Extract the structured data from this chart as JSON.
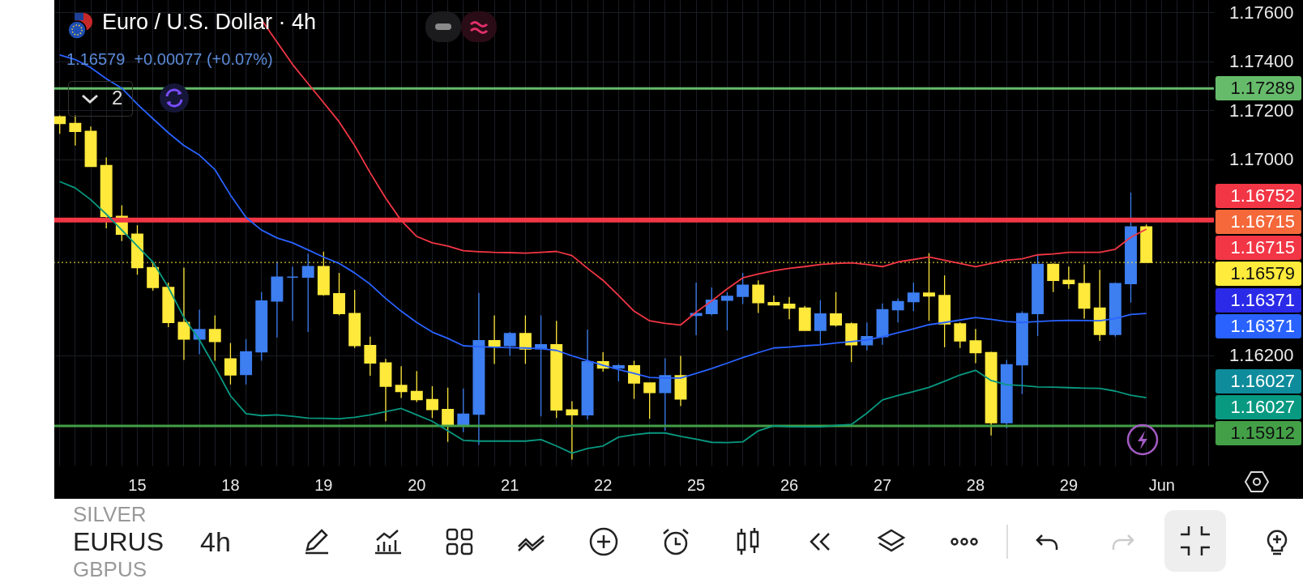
{
  "chart_data": [
    {
      "type": "candlestick",
      "title": "Euro / U.S. Dollar · 4h",
      "subtitle": "1.16579  +0.00077 (+0.07%)",
      "categories": [
        null,
        null,
        null,
        null,
        null,
        "15",
        null,
        null,
        null,
        null,
        null,
        "18",
        null,
        null,
        null,
        null,
        null,
        "19",
        null,
        null,
        null,
        null,
        null,
        "20",
        null,
        null,
        null,
        null,
        null,
        "21",
        null,
        null,
        null,
        null,
        null,
        "22",
        null,
        null,
        null,
        null,
        null,
        "25",
        null,
        null,
        null,
        null,
        null,
        "26",
        null,
        null,
        null,
        null,
        null,
        "27",
        null,
        null,
        null,
        null,
        null,
        "28",
        null,
        null,
        null,
        null,
        null,
        "29",
        null,
        null,
        null,
        null,
        null,
        "Jun",
        null,
        null,
        null
      ],
      "ohlc": [
        [
          1.17173,
          1.17179,
          1.17104,
          1.17146
        ],
        [
          1.17146,
          1.17179,
          1.17056,
          1.17114
        ],
        [
          1.17114,
          1.17134,
          1.16971,
          1.16971
        ],
        [
          1.16974,
          1.17007,
          1.16718,
          1.16767
        ],
        [
          1.16767,
          1.16812,
          1.16666,
          1.16694
        ],
        [
          1.16694,
          1.16731,
          1.16529,
          1.16558
        ],
        [
          1.16558,
          1.16581,
          1.16464,
          1.16477
        ],
        [
          1.16477,
          1.16497,
          1.16315,
          1.16334
        ],
        [
          1.16334,
          1.16558,
          1.16181,
          1.16266
        ],
        [
          1.16266,
          1.16386,
          1.16204,
          1.16305
        ],
        [
          1.16305,
          1.16363,
          1.16178,
          1.16256
        ],
        [
          1.16185,
          1.1625,
          1.16081,
          1.1612
        ],
        [
          1.16122,
          1.16266,
          1.16081,
          1.16214
        ],
        [
          1.16214,
          1.16458,
          1.16178,
          1.16422
        ],
        [
          1.16422,
          1.16581,
          1.16273,
          1.16519
        ],
        [
          1.16519,
          1.16562,
          1.16341,
          1.16519
        ],
        [
          1.16519,
          1.16614,
          1.16295,
          1.16562
        ],
        [
          1.16562,
          1.16623,
          1.16444,
          1.16448
        ],
        [
          1.16451,
          1.16536,
          1.16363,
          1.1637
        ],
        [
          1.1637,
          1.16467,
          1.1623,
          1.1624
        ],
        [
          1.1624,
          1.16276,
          1.16117,
          1.16169
        ],
        [
          1.16169,
          1.16185,
          1.15931,
          1.16074
        ],
        [
          1.16077,
          1.16156,
          1.16026,
          1.16052
        ],
        [
          1.16052,
          1.16136,
          1.16009,
          1.16019
        ],
        [
          1.16019,
          1.16074,
          1.15944,
          1.15979
        ],
        [
          1.15979,
          1.16068,
          1.15847,
          1.15912
        ],
        [
          1.15912,
          1.16065,
          1.15886,
          1.1596
        ],
        [
          1.1596,
          1.16455,
          1.15834,
          1.1626
        ],
        [
          1.1626,
          1.16363,
          1.16165,
          1.16237
        ],
        [
          1.1624,
          1.16295,
          1.16198,
          1.16289
        ],
        [
          1.16289,
          1.16363,
          1.16165,
          1.16226
        ],
        [
          1.16227,
          1.16363,
          1.15951,
          1.16243
        ],
        [
          1.16243,
          1.16341,
          1.15944,
          1.15977
        ],
        [
          1.15977,
          1.16013,
          1.15775,
          1.15957
        ],
        [
          1.15957,
          1.16305,
          1.15938,
          1.16174
        ],
        [
          1.16174,
          1.16213,
          1.16133,
          1.16148
        ],
        [
          1.16148,
          1.16165,
          1.16094,
          1.16157
        ],
        [
          1.16157,
          1.16178,
          1.16022,
          1.16087
        ],
        [
          1.16087,
          1.16087,
          1.15941,
          1.16048
        ],
        [
          1.16048,
          1.16188,
          1.15892,
          1.16117
        ],
        [
          1.16117,
          1.16198,
          1.15993,
          1.16022
        ],
        [
          1.16363,
          1.16497,
          1.16282,
          1.1637
        ],
        [
          1.1637,
          1.16477,
          1.16363,
          1.16425
        ],
        [
          1.16425,
          1.16458,
          1.16302,
          1.16441
        ],
        [
          1.16441,
          1.16536,
          1.16409,
          1.16486
        ],
        [
          1.16486,
          1.16506,
          1.16373,
          1.16415
        ],
        [
          1.16415,
          1.16444,
          1.16406,
          1.16406
        ],
        [
          1.16408,
          1.16438,
          1.16347,
          1.16393
        ],
        [
          1.16393,
          1.16402,
          1.16302,
          1.16302
        ],
        [
          1.16302,
          1.16425,
          1.16246,
          1.16369
        ],
        [
          1.16369,
          1.16458,
          1.16317,
          1.16324
        ],
        [
          1.16328,
          1.16334,
          1.16172,
          1.16243
        ],
        [
          1.16243,
          1.16334,
          1.1622,
          1.16276
        ],
        [
          1.16276,
          1.16412,
          1.16243,
          1.16386
        ],
        [
          1.16386,
          1.16432,
          1.16334,
          1.16419
        ],
        [
          1.16419,
          1.16497,
          1.1638,
          1.16454
        ],
        [
          1.16454,
          1.16617,
          1.16341,
          1.16442
        ],
        [
          1.16444,
          1.16526,
          1.16233,
          1.16328
        ],
        [
          1.16328,
          1.16334,
          1.1623,
          1.16259
        ],
        [
          1.16259,
          1.16308,
          1.16168,
          1.16211
        ],
        [
          1.16211,
          1.16214,
          1.15873,
          1.15925
        ],
        [
          1.15925,
          1.16181,
          1.15902,
          1.16161
        ],
        [
          1.16161,
          1.1638,
          1.16042,
          1.1637
        ],
        [
          1.1637,
          1.16607,
          1.16279,
          1.16571
        ],
        [
          1.16571,
          1.16575,
          1.16458,
          1.16506
        ],
        [
          1.16506,
          1.16562,
          1.16471,
          1.16493
        ],
        [
          1.16493,
          1.16571,
          1.1635,
          1.16393
        ],
        [
          1.16393,
          1.16549,
          1.16259,
          1.16285
        ],
        [
          1.16285,
          1.16497,
          1.16276,
          1.16493
        ],
        [
          1.16493,
          1.16864,
          1.16415,
          1.16724
        ],
        [
          1.16724,
          1.16734,
          1.16579,
          1.16579
        ],
        null,
        null,
        null,
        null
      ],
      "colors": [
        "#ffe93b",
        "#ffe93b",
        "#ffe93b",
        "#ffe93b",
        "#ffe93b",
        "#ffe93b",
        "#ffe93b",
        "#ffe93b",
        "#ffe93b",
        "#3d7ef0",
        "#ffe93b",
        "#ffe93b",
        "#3d7ef0",
        "#3d7ef0",
        "#3d7ef0",
        "#3d7ef0",
        "#3d7ef0",
        "#ffe93b",
        "#ffe93b",
        "#ffe93b",
        "#ffe93b",
        "#ffe93b",
        "#ffe93b",
        "#ffe93b",
        "#ffe93b",
        "#ffe93b",
        "#3d7ef0",
        "#3d7ef0",
        "#ffe93b",
        "#3d7ef0",
        "#ffe93b",
        "#3d7ef0",
        "#ffe93b",
        "#ffe93b",
        "#3d7ef0",
        "#ffe93b",
        "#3d7ef0",
        "#ffe93b",
        "#ffe93b",
        "#3d7ef0",
        "#ffe93b",
        "#3d7ef0",
        "#3d7ef0",
        "#3d7ef0",
        "#3d7ef0",
        "#ffe93b",
        "#ffe93b",
        "#ffe93b",
        "#ffe93b",
        "#3d7ef0",
        "#ffe93b",
        "#ffe93b",
        "#3d7ef0",
        "#3d7ef0",
        "#3d7ef0",
        "#3d7ef0",
        "#ffe93b",
        "#ffe93b",
        "#ffe93b",
        "#ffe93b",
        "#ffe93b",
        "#3d7ef0",
        "#3d7ef0",
        "#3d7ef0",
        "#ffe93b",
        "#ffe93b",
        "#ffe93b",
        "#ffe93b",
        "#3d7ef0",
        "#3d7ef0",
        "#ffe93b",
        null,
        null,
        null,
        null
      ],
      "series": [
        {
          "type": "line",
          "color": "#f23645",
          "values": [
            null,
            null,
            null,
            null,
            null,
            null,
            null,
            null,
            null,
            null,
            null,
            null,
            null,
            1.17569,
            1.17478,
            1.17387,
            1.17309,
            1.17231,
            1.17153,
            1.17056,
            1.16945,
            1.16841,
            1.1675,
            1.16685,
            1.16659,
            1.16646,
            1.16627,
            1.16623,
            1.1662,
            1.16619,
            1.16617,
            1.1662,
            1.16624,
            1.16607,
            1.16555,
            1.16506,
            1.16444,
            1.1638,
            1.16341,
            1.1633,
            1.16324,
            1.16376,
            1.16422,
            1.16471,
            1.16516,
            1.16532,
            1.16545,
            1.16555,
            1.16562,
            1.16571,
            1.16575,
            1.16577,
            1.16571,
            1.16562,
            1.16581,
            1.16591,
            1.16601,
            1.16588,
            1.16575,
            1.16562,
            1.16575,
            1.16588,
            1.16594,
            1.1661,
            1.16614,
            1.1662,
            1.1662,
            1.1662,
            1.16633,
            1.16682,
            1.16715,
            null,
            null,
            null,
            null
          ]
        },
        {
          "type": "line",
          "color": "#2962ff",
          "values": [
            1.17426,
            1.17407,
            1.17374,
            1.17329,
            1.1729,
            1.17225,
            1.17166,
            1.17108,
            1.17056,
            1.17017,
            1.16958,
            1.16854,
            1.16763,
            1.16711,
            1.16679,
            1.16659,
            1.1663,
            1.16601,
            1.16575,
            1.16536,
            1.1649,
            1.16432,
            1.1638,
            1.16334,
            1.16295,
            1.16269,
            1.16239,
            1.16235,
            1.16233,
            1.16231,
            1.1623,
            1.16227,
            1.1622,
            1.16198,
            1.16178,
            1.16159,
            1.16142,
            1.16126,
            1.1611,
            1.16107,
            1.16107,
            1.16126,
            1.16146,
            1.16168,
            1.16191,
            1.16211,
            1.1623,
            1.16234,
            1.16239,
            1.16243,
            1.1625,
            1.16256,
            1.16263,
            1.16276,
            1.16292,
            1.16308,
            1.16325,
            1.16334,
            1.16344,
            1.16354,
            1.16347,
            1.16338,
            1.16334,
            1.16338,
            1.16341,
            1.16343,
            1.16342,
            1.16341,
            1.1635,
            1.16367,
            1.16371,
            null,
            null,
            null,
            null
          ]
        },
        {
          "type": "line",
          "color": "#089981",
          "values": [
            1.16909,
            1.16883,
            1.16835,
            1.16776,
            1.16711,
            1.16646,
            1.16581,
            1.16477,
            1.16354,
            1.16263,
            1.16152,
            1.16035,
            1.15962,
            1.15954,
            1.15957,
            1.15951,
            1.15944,
            1.15943,
            1.15941,
            1.15947,
            1.15957,
            1.1597,
            1.15983,
            1.15957,
            1.15931,
            1.15892,
            1.15853,
            1.1585,
            1.1585,
            1.1585,
            1.1585,
            1.15856,
            1.1583,
            1.15801,
            1.1582,
            1.1583,
            1.15866,
            1.15876,
            1.15883,
            1.15883,
            1.15869,
            1.15858,
            1.15845,
            1.15844,
            1.15847,
            1.15892,
            1.15912,
            1.15909,
            1.15908,
            1.15908,
            1.15914,
            1.15918,
            1.15964,
            1.16018,
            1.16036,
            1.16052,
            1.16069,
            1.16094,
            1.1612,
            1.16139,
            1.16097,
            1.1608,
            1.16077,
            1.16071,
            1.1607,
            1.16068,
            1.16066,
            1.16065,
            1.16054,
            1.16037,
            1.16027,
            null,
            null,
            null,
            null
          ]
        }
      ],
      "ylim": [
        1.1575,
        1.1765
      ],
      "yticks": [
        {
          "value": 1.176,
          "label": "1.17600"
        },
        {
          "value": 1.174,
          "label": "1.17400"
        },
        {
          "value": 1.172,
          "label": "1.17200"
        },
        {
          "value": 1.17,
          "label": "1.17000"
        },
        {
          "value": 1.162,
          "label": "1.16200"
        }
      ],
      "ref_lines": [
        {
          "axis": "y",
          "value": 1.17289,
          "label": "1.17289",
          "color": "#66bb6a"
        },
        {
          "axis": "y",
          "value": 1.16752,
          "label": "1.16752",
          "color": "#f23645"
        },
        {
          "axis": "y",
          "value": 1.16579,
          "label": "1.16579",
          "color": "#ffeb3b",
          "line_style": "dotted"
        },
        {
          "axis": "y",
          "value": 1.15912,
          "label": "1.15912",
          "color": "#43a047"
        }
      ],
      "grid": true,
      "annotations": [
        "1.16715",
        "1.16715",
        "1.16371",
        "1.16371",
        "1.16027",
        "1.16027"
      ]
    },
    {
      "type": "other",
      "annotations": [
        "SILVER",
        "EURUS",
        "GBPUS",
        "4h",
        "2"
      ]
    }
  ]
}
